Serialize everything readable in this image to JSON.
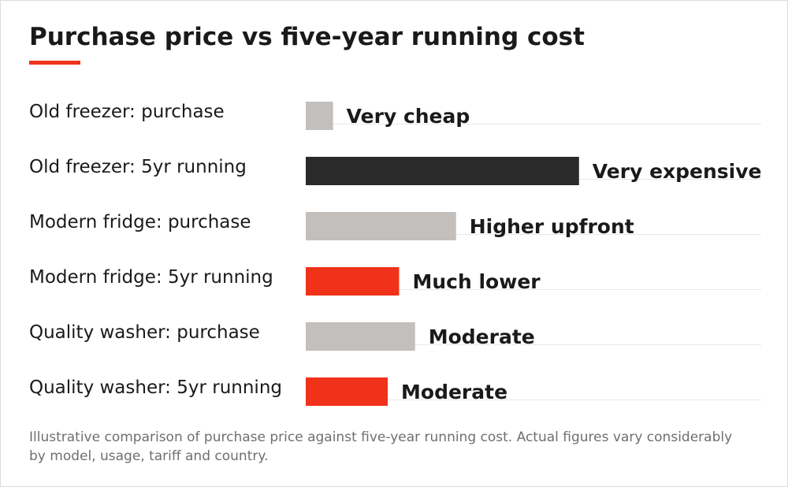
{
  "colors": {
    "accent": "#f0321a",
    "purchase": "#c2bfbc",
    "old_running": "#2a2a2a",
    "gridline": "#e8e8e8"
  },
  "chart_data": {
    "type": "bar",
    "orientation": "horizontal",
    "title": "Purchase price vs five-year running cost",
    "note": "Illustrative comparison of purchase price against five-year running cost. Actual figures vary considerably by model, usage, tariff and country.",
    "categories": [
      "Old freezer: purchase",
      "Old freezer: 5yr running",
      "Modern fridge: purchase",
      "Modern fridge: 5yr running",
      "Quality washer: purchase",
      "Quality washer: 5yr running"
    ],
    "values": [
      6,
      60,
      33,
      20.5,
      24,
      18
    ],
    "value_labels": [
      "Very cheap",
      "Very expensive",
      "Higher upfront",
      "Much lower",
      "Moderate",
      "Moderate"
    ],
    "bar_colors": [
      "#c2bfbc",
      "#2a2a2a",
      "#c2bfbc",
      "#f0321a",
      "#c2bfbc",
      "#f0321a"
    ],
    "xlim": [
      0,
      100
    ],
    "axis_labels_shown": false,
    "grid": "horizontal baseline per row",
    "legend": "none"
  }
}
